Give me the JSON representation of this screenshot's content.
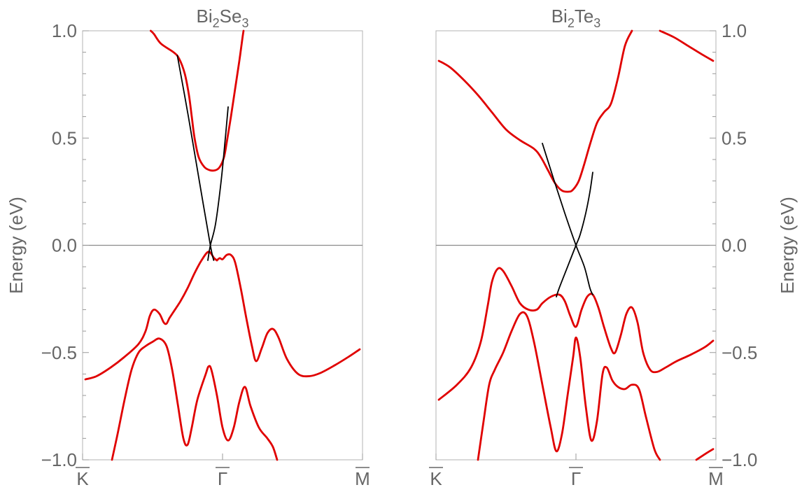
{
  "chart_data": [
    {
      "type": "line",
      "title": "Bi2Se3",
      "title_parts": [
        "Bi",
        "2",
        "Se",
        "3"
      ],
      "ylabel": "Energy (eV)",
      "ylabel_side": "left",
      "yticks_side": "left",
      "xlabel": "",
      "xlim": [
        -1,
        1
      ],
      "ylim": [
        -1.0,
        1.0
      ],
      "yticks": [
        -1.0,
        -0.5,
        0.0,
        0.5,
        1.0
      ],
      "ytick_labels": [
        "−1.0",
        "−0.5",
        "0.0",
        "0.5",
        "1.0"
      ],
      "xticks": [
        -1,
        0,
        1
      ],
      "xtick_labels": [
        "K",
        "Γ",
        "M"
      ],
      "zero_line": true,
      "series": [
        {
          "color": "#e00000",
          "points": [
            [
              -0.513,
              1.0
            ],
            [
              -0.49,
              0.985
            ],
            [
              -0.44,
              0.94
            ],
            [
              -0.35,
              0.9
            ],
            [
              -0.31,
              0.87
            ],
            [
              -0.27,
              0.8
            ],
            [
              -0.24,
              0.7
            ],
            [
              -0.22,
              0.6
            ],
            [
              -0.2,
              0.5
            ],
            [
              -0.17,
              0.41
            ],
            [
              -0.13,
              0.365
            ],
            [
              -0.09,
              0.35
            ],
            [
              -0.05,
              0.35
            ],
            [
              -0.02,
              0.365
            ],
            [
              0.01,
              0.41
            ],
            [
              0.03,
              0.48
            ],
            [
              0.06,
              0.6
            ],
            [
              0.09,
              0.73
            ],
            [
              0.12,
              0.86
            ],
            [
              0.143,
              0.97
            ],
            [
              0.15,
              1.0
            ]
          ]
        },
        {
          "color": "#e00000",
          "points": [
            [
              -0.04,
              -0.07
            ],
            [
              -0.06,
              -0.06
            ],
            [
              -0.1,
              -0.03
            ],
            [
              -0.15,
              -0.07
            ],
            [
              -0.2,
              -0.13
            ],
            [
              -0.25,
              -0.2
            ],
            [
              -0.3,
              -0.26
            ],
            [
              -0.35,
              -0.31
            ],
            [
              -0.38,
              -0.34
            ],
            [
              -0.4,
              -0.365
            ],
            [
              -0.42,
              -0.36
            ],
            [
              -0.45,
              -0.32
            ],
            [
              -0.49,
              -0.3
            ],
            [
              -0.52,
              -0.33
            ],
            [
              -0.55,
              -0.4
            ],
            [
              -0.6,
              -0.46
            ],
            [
              -0.7,
              -0.52
            ],
            [
              -0.8,
              -0.57
            ],
            [
              -0.9,
              -0.61
            ],
            [
              -0.98,
              -0.625
            ]
          ]
        },
        {
          "color": "#e00000",
          "points": [
            [
              -0.04,
              -0.07
            ],
            [
              -0.02,
              -0.06
            ],
            [
              0.0,
              -0.065
            ],
            [
              0.03,
              -0.045
            ],
            [
              0.06,
              -0.045
            ],
            [
              0.09,
              -0.08
            ],
            [
              0.13,
              -0.2
            ],
            [
              0.17,
              -0.34
            ],
            [
              0.21,
              -0.47
            ],
            [
              0.24,
              -0.54
            ],
            [
              0.28,
              -0.48
            ],
            [
              0.32,
              -0.41
            ],
            [
              0.36,
              -0.39
            ],
            [
              0.4,
              -0.43
            ],
            [
              0.46,
              -0.53
            ],
            [
              0.54,
              -0.6
            ],
            [
              0.62,
              -0.61
            ],
            [
              0.7,
              -0.595
            ],
            [
              0.8,
              -0.56
            ],
            [
              0.9,
              -0.52
            ],
            [
              0.98,
              -0.485
            ]
          ]
        },
        {
          "color": "#e00000",
          "points": [
            [
              -0.79,
              -1.0
            ],
            [
              -0.75,
              -0.88
            ],
            [
              -0.7,
              -0.72
            ],
            [
              -0.65,
              -0.58
            ],
            [
              -0.6,
              -0.5
            ],
            [
              -0.55,
              -0.47
            ],
            [
              -0.5,
              -0.45
            ],
            [
              -0.45,
              -0.435
            ],
            [
              -0.4,
              -0.47
            ],
            [
              -0.36,
              -0.58
            ],
            [
              -0.32,
              -0.74
            ],
            [
              -0.28,
              -0.9
            ],
            [
              -0.25,
              -0.93
            ],
            [
              -0.22,
              -0.85
            ],
            [
              -0.18,
              -0.72
            ],
            [
              -0.12,
              -0.6
            ],
            [
              -0.1,
              -0.565
            ],
            [
              -0.08,
              -0.58
            ],
            [
              -0.04,
              -0.7
            ],
            [
              0.0,
              -0.85
            ],
            [
              0.04,
              -0.91
            ],
            [
              0.08,
              -0.85
            ],
            [
              0.12,
              -0.73
            ],
            [
              0.16,
              -0.66
            ],
            [
              0.2,
              -0.75
            ],
            [
              0.26,
              -0.85
            ],
            [
              0.32,
              -0.9
            ],
            [
              0.36,
              -0.94
            ],
            [
              0.39,
              -1.0
            ]
          ]
        },
        {
          "color": "#000000",
          "points": [
            [
              -0.323,
              0.885
            ],
            [
              -0.244,
              0.6
            ],
            [
              -0.166,
              0.3
            ],
            [
              -0.087,
              0.0
            ],
            [
              -0.063,
              -0.07
            ]
          ]
        },
        {
          "color": "#000000",
          "points": [
            [
              0.04,
              0.645
            ],
            [
              0.02,
              0.5
            ],
            [
              -0.01,
              0.3
            ],
            [
              -0.05,
              0.1
            ],
            [
              -0.087,
              0.0
            ],
            [
              -0.105,
              -0.07
            ]
          ]
        }
      ]
    },
    {
      "type": "line",
      "title": "Bi2Te3",
      "title_parts": [
        "Bi",
        "2",
        "Te",
        "3"
      ],
      "ylabel": "Energy (eV)",
      "ylabel_side": "right",
      "yticks_side": "right",
      "xlabel": "",
      "xlim": [
        -1,
        1
      ],
      "ylim": [
        -1.0,
        1.0
      ],
      "yticks": [
        -1.0,
        -0.5,
        0.0,
        0.5,
        1.0
      ],
      "ytick_labels": [
        "−1.0",
        "−0.5",
        "0.0",
        "0.5",
        "1.0"
      ],
      "xticks": [
        -1,
        0,
        1
      ],
      "xtick_labels": [
        "K",
        "Γ",
        "M"
      ],
      "zero_line": true,
      "series": [
        {
          "color": "#e00000",
          "points": [
            [
              -0.98,
              0.86
            ],
            [
              -0.9,
              0.83
            ],
            [
              -0.8,
              0.77
            ],
            [
              -0.7,
              0.7
            ],
            [
              -0.6,
              0.62
            ],
            [
              -0.5,
              0.54
            ],
            [
              -0.4,
              0.49
            ],
            [
              -0.3,
              0.45
            ],
            [
              -0.25,
              0.41
            ],
            [
              -0.2,
              0.35
            ],
            [
              -0.15,
              0.29
            ],
            [
              -0.1,
              0.255
            ],
            [
              -0.05,
              0.25
            ],
            [
              -0.02,
              0.26
            ],
            [
              0.02,
              0.3
            ],
            [
              0.06,
              0.38
            ],
            [
              0.1,
              0.47
            ],
            [
              0.15,
              0.57
            ],
            [
              0.2,
              0.62
            ],
            [
              0.25,
              0.66
            ],
            [
              0.3,
              0.78
            ],
            [
              0.35,
              0.93
            ],
            [
              0.4,
              1.0
            ]
          ]
        },
        {
          "color": "#e00000",
          "points": [
            [
              0.6,
              1.0
            ],
            [
              0.7,
              0.97
            ],
            [
              0.8,
              0.93
            ],
            [
              0.9,
              0.89
            ],
            [
              0.98,
              0.86
            ]
          ]
        },
        {
          "color": "#e00000",
          "points": [
            [
              -0.98,
              -0.72
            ],
            [
              -0.85,
              -0.65
            ],
            [
              -0.75,
              -0.57
            ],
            [
              -0.68,
              -0.45
            ],
            [
              -0.63,
              -0.28
            ],
            [
              -0.6,
              -0.17
            ],
            [
              -0.56,
              -0.11
            ],
            [
              -0.52,
              -0.12
            ],
            [
              -0.46,
              -0.19
            ],
            [
              -0.4,
              -0.27
            ],
            [
              -0.34,
              -0.3
            ],
            [
              -0.28,
              -0.3
            ],
            [
              -0.24,
              -0.27
            ],
            [
              -0.18,
              -0.24
            ],
            [
              -0.12,
              -0.23
            ],
            [
              -0.08,
              -0.26
            ],
            [
              -0.04,
              -0.33
            ],
            [
              0.0,
              -0.38
            ],
            [
              0.04,
              -0.3
            ],
            [
              0.08,
              -0.24
            ],
            [
              0.12,
              -0.23
            ],
            [
              0.16,
              -0.29
            ],
            [
              0.2,
              -0.38
            ],
            [
              0.25,
              -0.48
            ],
            [
              0.28,
              -0.5
            ],
            [
              0.32,
              -0.42
            ],
            [
              0.36,
              -0.32
            ],
            [
              0.4,
              -0.29
            ],
            [
              0.44,
              -0.36
            ],
            [
              0.48,
              -0.5
            ],
            [
              0.53,
              -0.58
            ],
            [
              0.58,
              -0.59
            ],
            [
              0.64,
              -0.57
            ],
            [
              0.72,
              -0.54
            ],
            [
              0.82,
              -0.51
            ],
            [
              0.92,
              -0.475
            ],
            [
              0.98,
              -0.445
            ]
          ]
        },
        {
          "color": "#e00000",
          "points": [
            [
              -0.7,
              -1.0
            ],
            [
              -0.66,
              -0.82
            ],
            [
              -0.62,
              -0.65
            ],
            [
              -0.58,
              -0.58
            ],
            [
              -0.52,
              -0.5
            ],
            [
              -0.46,
              -0.4
            ],
            [
              -0.4,
              -0.32
            ],
            [
              -0.35,
              -0.33
            ],
            [
              -0.3,
              -0.45
            ],
            [
              -0.24,
              -0.65
            ],
            [
              -0.18,
              -0.85
            ],
            [
              -0.14,
              -0.96
            ],
            [
              -0.1,
              -0.88
            ],
            [
              -0.06,
              -0.7
            ],
            [
              -0.02,
              -0.52
            ],
            [
              0.0,
              -0.43
            ],
            [
              0.03,
              -0.52
            ],
            [
              0.07,
              -0.75
            ],
            [
              0.11,
              -0.91
            ],
            [
              0.15,
              -0.82
            ],
            [
              0.19,
              -0.6
            ],
            [
              0.22,
              -0.57
            ],
            [
              0.26,
              -0.63
            ],
            [
              0.3,
              -0.66
            ],
            [
              0.35,
              -0.67
            ],
            [
              0.4,
              -0.65
            ],
            [
              0.45,
              -0.67
            ],
            [
              0.5,
              -0.8
            ],
            [
              0.56,
              -0.95
            ],
            [
              0.6,
              -1.0
            ]
          ]
        },
        {
          "color": "#e00000",
          "points": [
            [
              0.86,
              -1.0
            ],
            [
              0.93,
              -0.97
            ],
            [
              0.98,
              -0.95
            ]
          ]
        },
        {
          "color": "#000000",
          "points": [
            [
              -0.24,
              0.475
            ],
            [
              -0.16,
              0.31
            ],
            [
              -0.08,
              0.15
            ],
            [
              0.0,
              0.0
            ],
            [
              0.06,
              -0.1
            ],
            [
              0.1,
              -0.2
            ],
            [
              0.12,
              -0.23
            ]
          ]
        },
        {
          "color": "#000000",
          "points": [
            [
              0.12,
              0.34
            ],
            [
              0.1,
              0.25
            ],
            [
              0.07,
              0.15
            ],
            [
              0.03,
              0.05
            ],
            [
              0.0,
              0.0
            ],
            [
              -0.06,
              -0.1
            ],
            [
              -0.12,
              -0.2
            ],
            [
              -0.14,
              -0.24
            ]
          ]
        }
      ]
    }
  ]
}
